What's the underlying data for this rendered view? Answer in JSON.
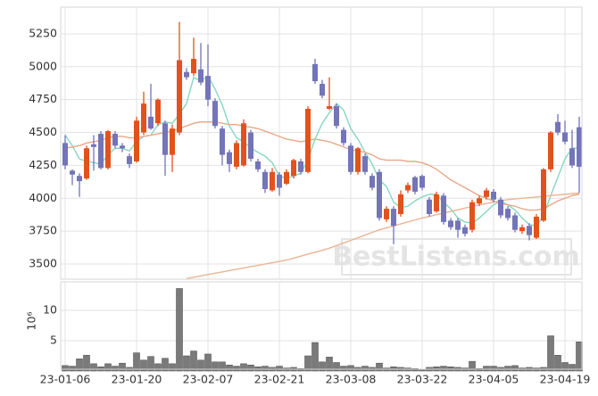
{
  "chart_data": {
    "type": "candlestick",
    "categories": [
      "23-01-06",
      null,
      null,
      null,
      null,
      null,
      null,
      null,
      null,
      null,
      "23-01-20",
      null,
      null,
      null,
      null,
      null,
      null,
      null,
      null,
      null,
      "23-02-07",
      null,
      null,
      null,
      null,
      null,
      null,
      null,
      null,
      null,
      "23-02-21",
      null,
      null,
      null,
      null,
      null,
      null,
      null,
      null,
      null,
      "23-03-08",
      null,
      null,
      null,
      null,
      null,
      null,
      null,
      null,
      null,
      "23-03-22",
      null,
      null,
      null,
      null,
      null,
      null,
      null,
      null,
      null,
      "23-04-05",
      null,
      null,
      null,
      null,
      null,
      null,
      null,
      null,
      null,
      "23-04-19",
      null,
      null
    ],
    "open": [
      4420,
      4210,
      4170,
      4150,
      4410,
      4490,
      4230,
      4490,
      4400,
      4320,
      4280,
      4500,
      4620,
      4570,
      4570,
      4330,
      4500,
      4960,
      4950,
      4980,
      4930,
      4740,
      4530,
      4350,
      4240,
      4250,
      4500,
      4280,
      4200,
      4060,
      4180,
      4110,
      4170,
      4280,
      4200,
      5020,
      4870,
      4680,
      4700,
      4520,
      4400,
      4200,
      4320,
      4170,
      4200,
      3840,
      3920,
      3880,
      4060,
      4160,
      4170,
      3990,
      3900,
      4020,
      3830,
      3830,
      3780,
      3760,
      3960,
      4010,
      4050,
      3990,
      3920,
      3870,
      3750,
      3790,
      3700,
      3830,
      4220,
      4580,
      4500,
      4380,
      4540
    ],
    "high": [
      4480,
      4220,
      4190,
      4400,
      4480,
      4510,
      4520,
      4510,
      4420,
      4340,
      4620,
      4810,
      4870,
      4760,
      4590,
      4560,
      5340,
      4990,
      5220,
      5180,
      5170,
      4760,
      4550,
      4370,
      4440,
      4600,
      4520,
      4300,
      4220,
      4230,
      4200,
      4220,
      4300,
      4300,
      4700,
      5060,
      4900,
      4920,
      4720,
      4540,
      4420,
      4390,
      4340,
      4190,
      4220,
      3940,
      3940,
      4060,
      4120,
      4170,
      4180,
      4010,
      4050,
      4040,
      3850,
      3850,
      3800,
      3990,
      4020,
      4080,
      4070,
      4010,
      3940,
      3890,
      3800,
      3810,
      3880,
      4230,
      4510,
      4640,
      4590,
      4520,
      4620
    ],
    "low": [
      4220,
      4100,
      4010,
      4140,
      4210,
      4220,
      4220,
      4380,
      4350,
      4230,
      4270,
      4480,
      4520,
      4550,
      4170,
      4200,
      4480,
      4900,
      4930,
      4860,
      4700,
      4530,
      4250,
      4200,
      4220,
      4240,
      4280,
      4200,
      4040,
      4050,
      4020,
      4100,
      4150,
      4180,
      4190,
      4870,
      4760,
      4670,
      4530,
      4400,
      4180,
      4180,
      4180,
      4060,
      3830,
      3820,
      3650,
      3860,
      4040,
      4030,
      4060,
      3860,
      3890,
      3800,
      3760,
      3700,
      3710,
      3740,
      3940,
      3990,
      3970,
      3850,
      3830,
      3740,
      3730,
      3680,
      3690,
      3820,
      4200,
      4480,
      4410,
      4230,
      4040
    ],
    "close": [
      4250,
      4180,
      4130,
      4380,
      4390,
      4230,
      4510,
      4400,
      4380,
      4260,
      4590,
      4720,
      4530,
      4750,
      4330,
      4530,
      5050,
      4920,
      5060,
      4880,
      4750,
      4550,
      4330,
      4260,
      4420,
      4570,
      4300,
      4220,
      4070,
      4200,
      4080,
      4200,
      4290,
      4200,
      4680,
      4890,
      4780,
      4700,
      4550,
      4420,
      4200,
      4380,
      4200,
      4080,
      3850,
      3920,
      3790,
      4030,
      4100,
      4050,
      4080,
      3880,
      4030,
      3820,
      3780,
      3760,
      3730,
      3970,
      4000,
      4060,
      3990,
      3870,
      3850,
      3760,
      3780,
      3720,
      3860,
      4220,
      4500,
      4500,
      4430,
      4250,
      4240
    ],
    "up_color": "#e2521d",
    "down_color": "#7474b8",
    "moving_averages": [
      {
        "color": "#86d6c2",
        "values": [
          4480,
          4400,
          4300,
          4280,
          4270,
          4260,
          4330,
          4380,
          4380,
          4360,
          4430,
          4470,
          4480,
          4560,
          4580,
          4570,
          4640,
          4720,
          4920,
          4890,
          4930,
          4830,
          4710,
          4550,
          4460,
          4430,
          4380,
          4350,
          4320,
          4270,
          4170,
          4150,
          4170,
          4190,
          4290,
          4450,
          4570,
          4650,
          4720,
          4670,
          4530,
          4450,
          4350,
          4260,
          4140,
          4090,
          3970,
          3930,
          3940,
          3980,
          4010,
          4030,
          4030,
          3970,
          3920,
          3850,
          3820,
          3810,
          3850,
          3900,
          3950,
          3980,
          3950,
          3910,
          3850,
          3800,
          3790,
          3870,
          4020,
          4160,
          4300,
          4380,
          4380
        ]
      },
      {
        "color": "#e8a888",
        "values": [
          4380,
          4390,
          4400,
          4420,
          4430,
          4440,
          4460,
          4470,
          4470,
          4460,
          4460,
          4470,
          4480,
          4490,
          4500,
          4510,
          4530,
          4550,
          4570,
          4580,
          4580,
          4580,
          4570,
          4560,
          4560,
          4550,
          4540,
          4530,
          4510,
          4490,
          4470,
          4450,
          4440,
          4430,
          4440,
          4450,
          4440,
          4430,
          4410,
          4390,
          4370,
          4360,
          4350,
          4330,
          4300,
          4290,
          4290,
          4290,
          4280,
          4280,
          4270,
          4250,
          4220,
          4180,
          4140,
          4110,
          4080,
          4050,
          4020,
          4000,
          3980,
          3960,
          3950,
          3940,
          3920,
          3910,
          3910,
          3920,
          3950,
          3980,
          4000,
          4020,
          4030
        ]
      },
      {
        "color": "#eab594",
        "values": [
          null,
          null,
          null,
          null,
          null,
          null,
          null,
          null,
          null,
          null,
          null,
          null,
          null,
          null,
          null,
          null,
          null,
          3390,
          3400,
          3410,
          3420,
          3430,
          3440,
          3450,
          3460,
          3470,
          3480,
          3490,
          3500,
          3510,
          3520,
          3530,
          3545,
          3560,
          3575,
          3590,
          3605,
          3620,
          3640,
          3660,
          3680,
          3700,
          3720,
          3740,
          3760,
          3775,
          3790,
          3805,
          3820,
          3835,
          3850,
          3862,
          3875,
          3887,
          3900,
          3912,
          3925,
          3937,
          3950,
          3960,
          3970,
          3980,
          3990,
          3995,
          4000,
          4005,
          4010,
          4015,
          4020,
          4025,
          4030,
          4035,
          4040
        ]
      }
    ],
    "ylim": [
      3385,
      5453
    ],
    "yticks": [
      3500,
      3750,
      4000,
      4250,
      4500,
      4750,
      5000,
      5250
    ],
    "grid": true,
    "watermark": "BestListens.com",
    "volume": {
      "color": "#7a7a7a",
      "values": [
        0.9,
        0.8,
        2,
        2.6,
        1.2,
        0.7,
        1.2,
        0.8,
        1.3,
        0.6,
        3,
        1.8,
        2.4,
        1.2,
        2.1,
        1.2,
        13.6,
        2.5,
        3.3,
        1.8,
        2.8,
        1.5,
        1.5,
        1,
        0.8,
        1.2,
        1,
        0.7,
        0.8,
        0.6,
        0.8,
        0.5,
        0.6,
        0.4,
        2.5,
        4.7,
        1.5,
        2.3,
        1.4,
        0.8,
        0.9,
        0.6,
        0.8,
        0.6,
        1.3,
        0.5,
        0.7,
        0.6,
        0.5,
        0.4,
        0.3,
        0.6,
        0.7,
        0.8,
        0.7,
        0.6,
        0.5,
        1.6,
        0.4,
        0.8,
        0.8,
        0.6,
        0.8,
        0.9,
        0.5,
        0.6,
        0.5,
        0.6,
        5.8,
        2.6,
        1.4,
        1.1,
        4.8
      ],
      "ylim": [
        0,
        14.7
      ],
      "yticks": [
        5,
        10
      ],
      "offset_label": "10⁶"
    }
  }
}
